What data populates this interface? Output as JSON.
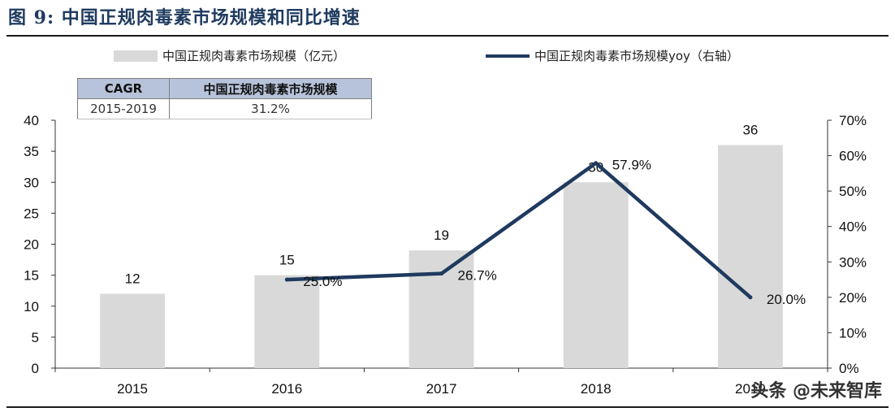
{
  "figure": {
    "title": "图 9:  中国正规肉毒素市场规模和同比增速"
  },
  "legend": {
    "bar_label": "中国正规肉毒素市场规模（亿元）",
    "line_label": "中国正规肉毒素市场规模yoy（右轴）"
  },
  "cagr_table": {
    "header_left": "CAGR",
    "header_right": "中国正规肉毒素市场规模",
    "period": "2015-2019",
    "value": "31.2%"
  },
  "watermark": "头条 @未来智库",
  "colors": {
    "bar": "#d9d9d9",
    "line": "#1f3a5f",
    "title": "#1f3a5f",
    "table_header": "#b7c3da"
  },
  "chart_data": {
    "type": "bar",
    "categories": [
      "2015",
      "2016",
      "2017",
      "2018",
      "2019"
    ],
    "series": [
      {
        "name": "中国正规肉毒素市场规模（亿元）",
        "type": "bar",
        "axis": "left",
        "values": [
          12,
          15,
          19,
          30,
          36
        ],
        "data_labels": [
          "12",
          "15",
          "19",
          "30",
          "36"
        ]
      },
      {
        "name": "中国正规肉毒素市场规模yoy（右轴）",
        "type": "line",
        "axis": "right",
        "values": [
          null,
          25.0,
          26.7,
          57.9,
          20.0
        ],
        "data_labels": [
          "",
          "25.0%",
          "26.7%",
          "57.9%",
          "20.0%"
        ]
      }
    ],
    "y_left": {
      "min": 0,
      "max": 40,
      "step": 5,
      "ticks": [
        "0",
        "5",
        "10",
        "15",
        "20",
        "25",
        "30",
        "35",
        "40"
      ]
    },
    "y_right": {
      "min": 0,
      "max": 70,
      "step": 10,
      "ticks": [
        "0%",
        "10%",
        "20%",
        "30%",
        "40%",
        "50%",
        "60%",
        "70%"
      ]
    },
    "grid": false,
    "legend_position": "top"
  }
}
